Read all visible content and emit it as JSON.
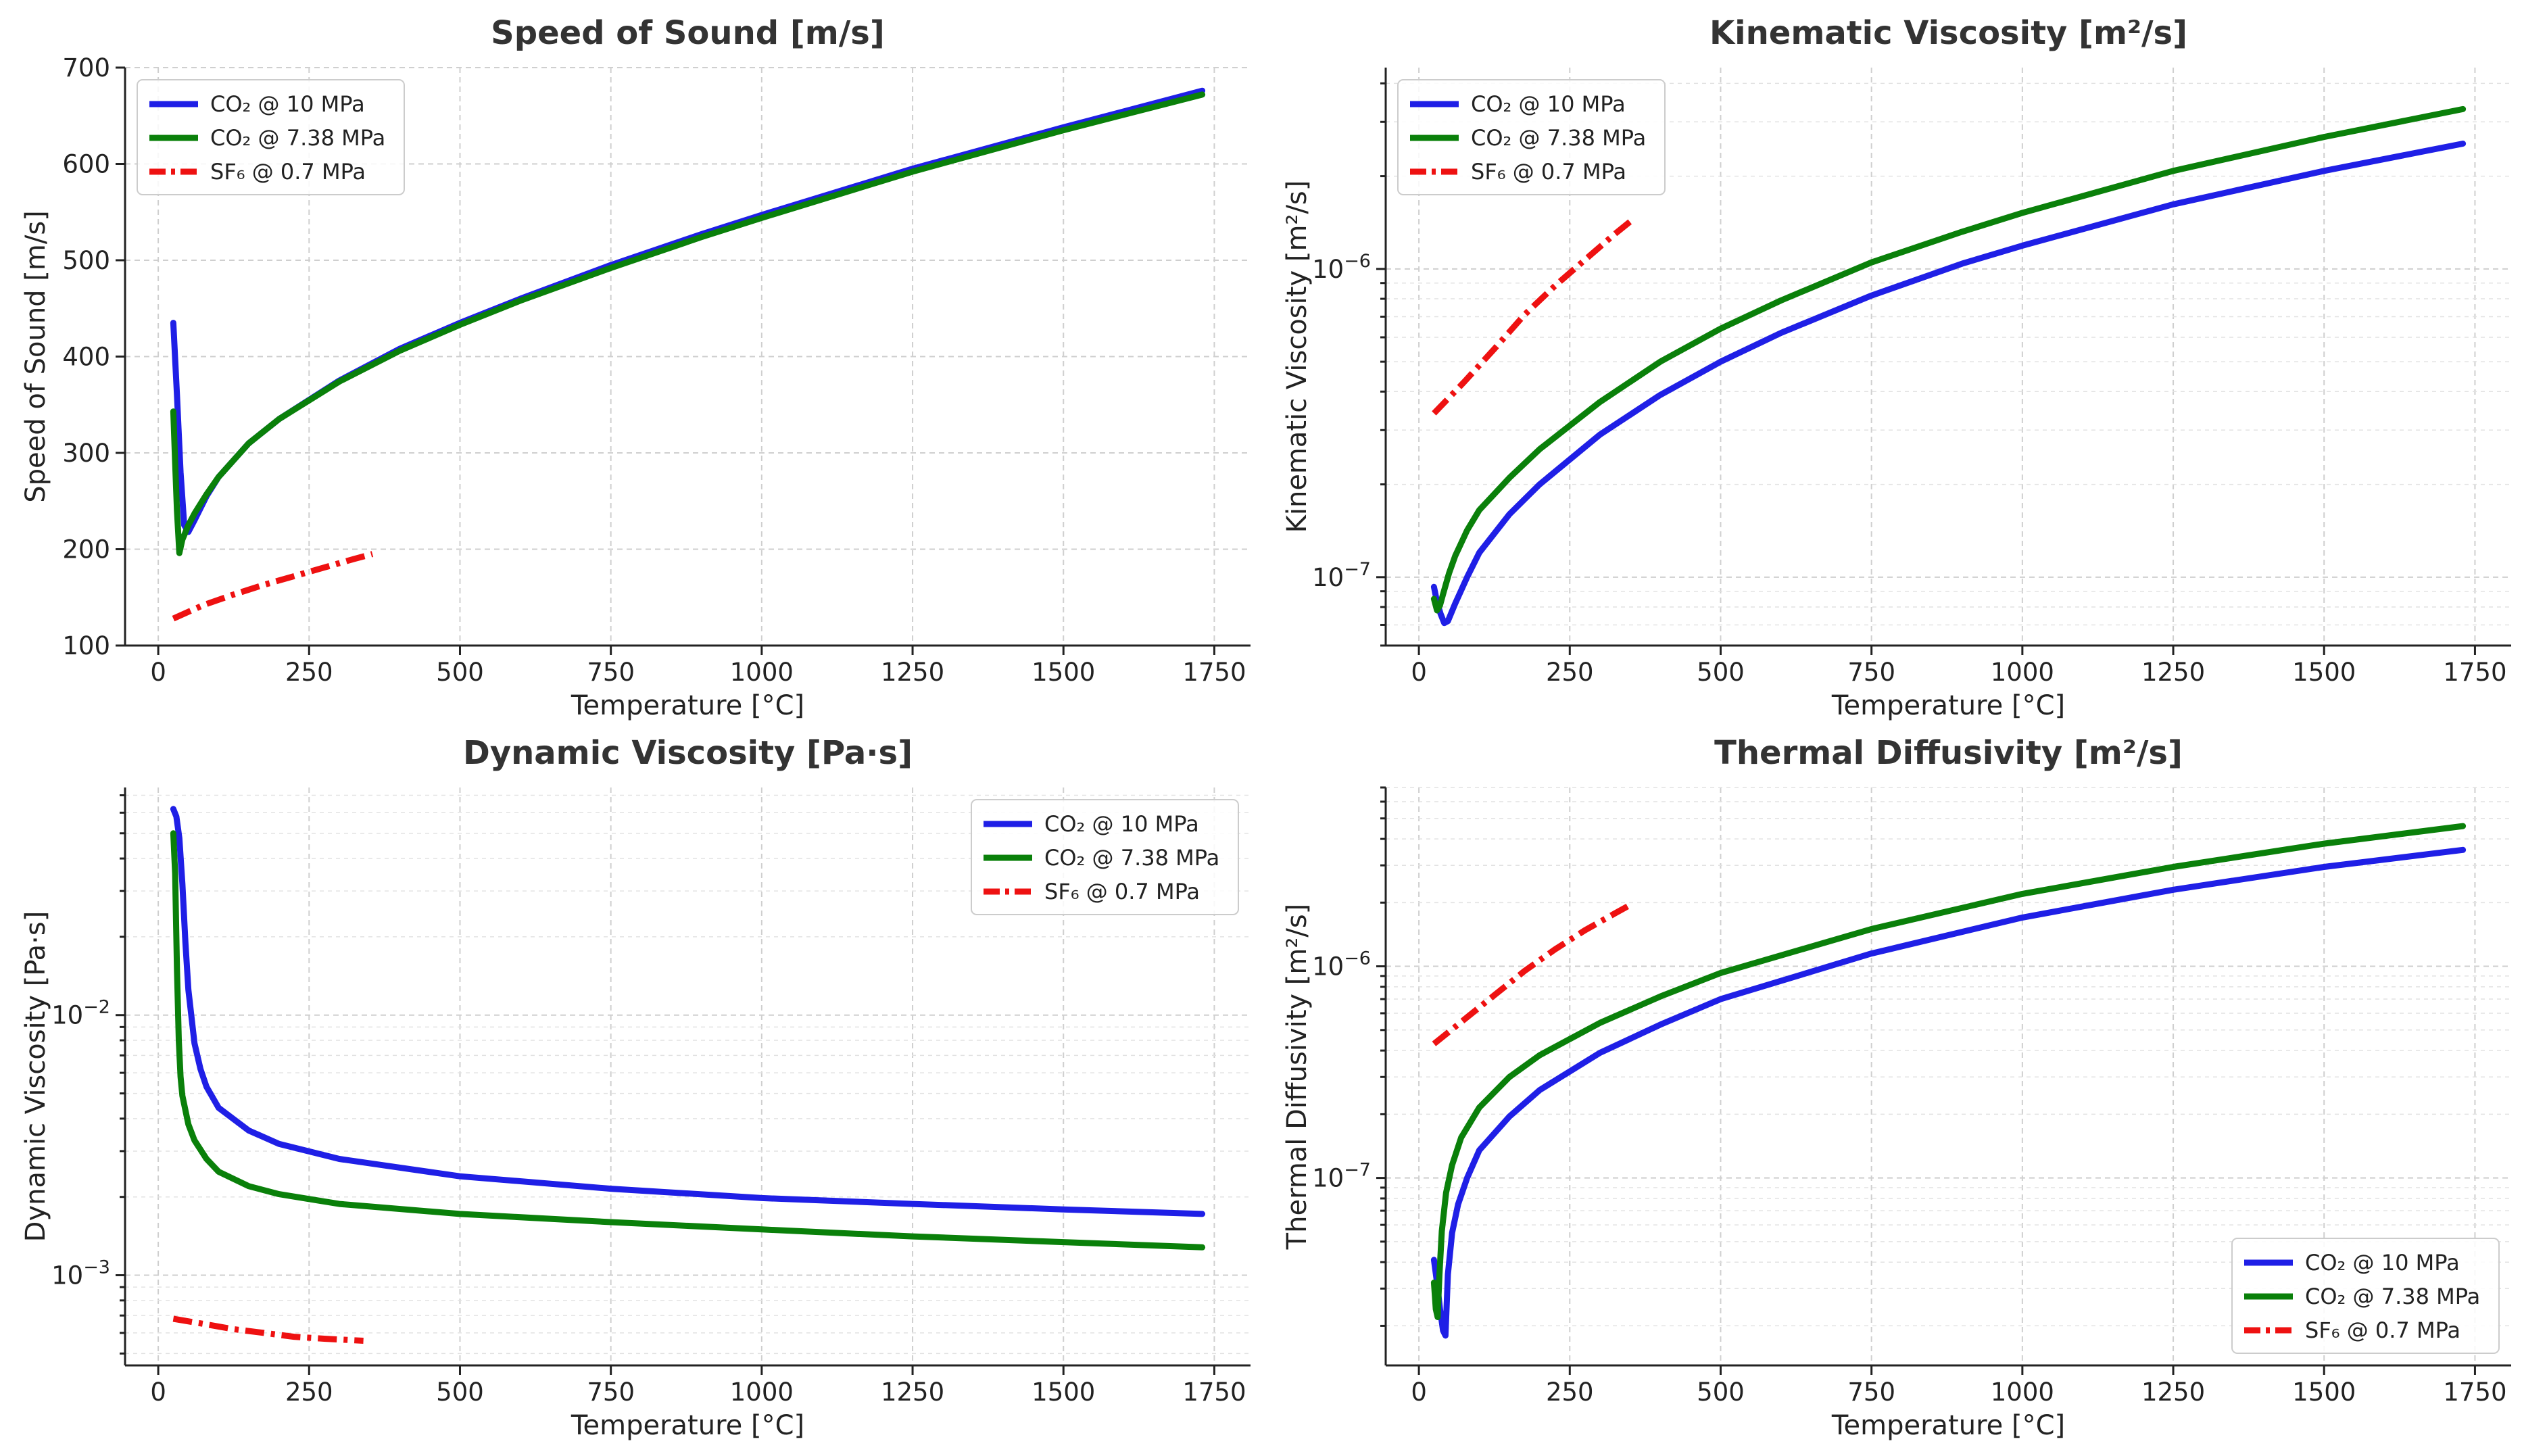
{
  "chart_data": [
    {
      "type": "line",
      "title": "Speed of Sound [m/s]",
      "xlabel": "Temperature [°C]",
      "ylabel": "Speed of Sound [m/s]",
      "xlim": [
        -55,
        1810
      ],
      "ylim": [
        100,
        700
      ],
      "yscale": "linear",
      "xticks": [
        0,
        250,
        500,
        750,
        1000,
        1250,
        1500,
        1750
      ],
      "xtick_labels": [
        "0",
        "250",
        "500",
        "750",
        "1000",
        "1250",
        "1500",
        "1750"
      ],
      "yticks": [
        100,
        200,
        300,
        400,
        500,
        600,
        700
      ],
      "ytick_labels": [
        "100",
        "200",
        "300",
        "400",
        "500",
        "600",
        "700"
      ],
      "legend_position": "top-left",
      "grid": true,
      "series": [
        {
          "name": "CO₂ @ 10 MPa",
          "color": "#1f1fe6",
          "dash": "solid",
          "x": [
            25,
            31,
            37,
            43,
            50,
            60,
            80,
            100,
            150,
            200,
            300,
            400,
            500,
            600,
            750,
            900,
            1000,
            1250,
            1500,
            1730
          ],
          "y": [
            435,
            360,
            280,
            225,
            218,
            230,
            255,
            275,
            310,
            335,
            375,
            408,
            435,
            460,
            495,
            527,
            547,
            595,
            638,
            676
          ]
        },
        {
          "name": "CO₂ @ 7.38 MPa",
          "color": "#0a800a",
          "dash": "solid",
          "x": [
            25,
            28,
            31,
            35,
            40,
            50,
            60,
            80,
            100,
            150,
            200,
            300,
            400,
            500,
            600,
            750,
            900,
            1000,
            1250,
            1500,
            1730
          ],
          "y": [
            343,
            290,
            240,
            196,
            210,
            225,
            237,
            257,
            275,
            310,
            335,
            374,
            406,
            433,
            458,
            492,
            524,
            544,
            592,
            635,
            672
          ]
        },
        {
          "name": "SF₆ @ 0.7 MPa",
          "color": "#ee1111",
          "dash": "dashdot",
          "x": [
            25,
            75,
            125,
            175,
            225,
            275,
            325,
            355
          ],
          "y": [
            128,
            142,
            153,
            163,
            172,
            181,
            190,
            195
          ]
        }
      ]
    },
    {
      "type": "line",
      "title": "Kinematic Viscosity [m²/s]",
      "xlabel": "Temperature [°C]",
      "ylabel": "Kinematic Viscosity [m²/s]",
      "xlim": [
        -55,
        1810
      ],
      "ylim": [
        6e-08,
        4.5e-06
      ],
      "yscale": "log",
      "xticks": [
        0,
        250,
        500,
        750,
        1000,
        1250,
        1500,
        1750
      ],
      "xtick_labels": [
        "0",
        "250",
        "500",
        "750",
        "1000",
        "1250",
        "1500",
        "1750"
      ],
      "ytick_major": [
        {
          "value": 1e-07,
          "base": "10",
          "exp": "−7"
        },
        {
          "value": 1e-06,
          "base": "10",
          "exp": "−6"
        }
      ],
      "legend_position": "top-left",
      "grid": true,
      "series": [
        {
          "name": "CO₂ @ 10 MPa",
          "color": "#1f1fe6",
          "dash": "solid",
          "x": [
            25,
            30,
            36,
            42,
            48,
            60,
            80,
            100,
            150,
            200,
            300,
            400,
            500,
            600,
            750,
            900,
            1000,
            1250,
            1500,
            1730
          ],
          "y": [
            9.3e-08,
            8.3e-08,
            7.6e-08,
            7.1e-08,
            7.2e-08,
            8.2e-08,
            1e-07,
            1.2e-07,
            1.6e-07,
            2e-07,
            2.9e-07,
            3.9e-07,
            5e-07,
            6.2e-07,
            8.2e-07,
            1.04e-06,
            1.19e-06,
            1.62e-06,
            2.08e-06,
            2.55e-06
          ]
        },
        {
          "name": "CO₂ @ 7.38 MPa",
          "color": "#0a800a",
          "dash": "solid",
          "x": [
            25,
            30,
            35,
            40,
            50,
            60,
            80,
            100,
            150,
            200,
            300,
            400,
            500,
            600,
            750,
            900,
            1000,
            1250,
            1500,
            1730
          ],
          "y": [
            8.5e-08,
            7.8e-08,
            8.1e-08,
            8.8e-08,
            1.03e-07,
            1.17e-07,
            1.42e-07,
            1.65e-07,
            2.1e-07,
            2.6e-07,
            3.7e-07,
            5e-07,
            6.4e-07,
            7.9e-07,
            1.05e-06,
            1.32e-06,
            1.52e-06,
            2.08e-06,
            2.68e-06,
            3.3e-06
          ]
        },
        {
          "name": "SF₆ @ 0.7 MPa",
          "color": "#ee1111",
          "dash": "dashdot",
          "x": [
            25,
            75,
            125,
            175,
            225,
            275,
            325,
            355
          ],
          "y": [
            3.4e-07,
            4.3e-07,
            5.5e-07,
            7.1e-07,
            8.8e-07,
            1.07e-06,
            1.3e-06,
            1.45e-06
          ]
        }
      ]
    },
    {
      "type": "line",
      "title": "Dynamic Viscosity [Pa·s]",
      "xlabel": "Temperature [°C]",
      "ylabel": "Dynamic Viscosity [Pa·s]",
      "xlim": [
        -55,
        1810
      ],
      "ylim": [
        0.00045,
        0.075
      ],
      "yscale": "log",
      "xticks": [
        0,
        250,
        500,
        750,
        1000,
        1250,
        1500,
        1750
      ],
      "xtick_labels": [
        "0",
        "250",
        "500",
        "750",
        "1000",
        "1250",
        "1500",
        "1750"
      ],
      "ytick_major": [
        {
          "value": 0.001,
          "base": "10",
          "exp": "−3"
        },
        {
          "value": 0.01,
          "base": "10",
          "exp": "−2"
        }
      ],
      "legend_position": "top-right",
      "grid": true,
      "series": [
        {
          "name": "CO₂ @ 10 MPa",
          "color": "#1f1fe6",
          "dash": "solid",
          "x": [
            25,
            30,
            35,
            40,
            45,
            50,
            60,
            70,
            80,
            100,
            150,
            200,
            300,
            500,
            750,
            1000,
            1250,
            1500,
            1730
          ],
          "y": [
            0.062,
            0.058,
            0.048,
            0.032,
            0.019,
            0.0125,
            0.0078,
            0.0062,
            0.0053,
            0.0044,
            0.0036,
            0.0032,
            0.0028,
            0.0024,
            0.00215,
            0.00198,
            0.00188,
            0.00179,
            0.00172
          ]
        },
        {
          "name": "CO₂ @ 7.38 MPa",
          "color": "#0a800a",
          "dash": "solid",
          "x": [
            25,
            28,
            31,
            34,
            37,
            40,
            50,
            60,
            80,
            100,
            150,
            200,
            300,
            500,
            750,
            1000,
            1250,
            1500,
            1730
          ],
          "y": [
            0.05,
            0.035,
            0.015,
            0.008,
            0.0058,
            0.0049,
            0.0038,
            0.0033,
            0.0028,
            0.0025,
            0.0022,
            0.00205,
            0.00188,
            0.00172,
            0.0016,
            0.0015,
            0.00141,
            0.00134,
            0.00128
          ]
        },
        {
          "name": "SF₆ @ 0.7 MPa",
          "color": "#ee1111",
          "dash": "dashdot",
          "x": [
            25,
            75,
            125,
            175,
            225,
            275,
            340
          ],
          "y": [
            0.00068,
            0.00065,
            0.00062,
            0.0006,
            0.00058,
            0.00057,
            0.00056
          ]
        }
      ]
    },
    {
      "type": "line",
      "title": "Thermal Diffusivity [m²/s]",
      "xlabel": "Temperature [°C]",
      "ylabel": "Thermal Diffusivity [m²/s]",
      "xlim": [
        -55,
        1810
      ],
      "ylim": [
        1.3e-08,
        7e-06
      ],
      "yscale": "log",
      "xticks": [
        0,
        250,
        500,
        750,
        1000,
        1250,
        1500,
        1750
      ],
      "xtick_labels": [
        "0",
        "250",
        "500",
        "750",
        "1000",
        "1250",
        "1500",
        "1750"
      ],
      "ytick_major": [
        {
          "value": 1e-07,
          "base": "10",
          "exp": "−7"
        },
        {
          "value": 1e-06,
          "base": "10",
          "exp": "−6"
        }
      ],
      "legend_position": "bottom-right",
      "grid": true,
      "series": [
        {
          "name": "CO₂ @ 10 MPa",
          "color": "#1f1fe6",
          "dash": "solid",
          "x": [
            25,
            30,
            35,
            40,
            44,
            48,
            55,
            65,
            80,
            100,
            150,
            200,
            300,
            400,
            500,
            750,
            1000,
            1250,
            1500,
            1730
          ],
          "y": [
            4.1e-08,
            3.2e-08,
            2.4e-08,
            1.9e-08,
            1.8e-08,
            3.5e-08,
            5.5e-08,
            7.5e-08,
            1e-07,
            1.35e-07,
            1.95e-07,
            2.6e-07,
            3.9e-07,
            5.3e-07,
            7e-07,
            1.15e-06,
            1.7e-06,
            2.3e-06,
            2.95e-06,
            3.55e-06
          ]
        },
        {
          "name": "CO₂ @ 7.38 MPa",
          "color": "#0a800a",
          "dash": "solid",
          "x": [
            25,
            28,
            31,
            34,
            38,
            45,
            55,
            70,
            100,
            150,
            200,
            300,
            400,
            500,
            750,
            1000,
            1250,
            1500,
            1730
          ],
          "y": [
            3.2e-08,
            2.4e-08,
            2.2e-08,
            3.5e-08,
            5.6e-08,
            8.5e-08,
            1.15e-07,
            1.55e-07,
            2.15e-07,
            3e-07,
            3.8e-07,
            5.4e-07,
            7.2e-07,
            9.3e-07,
            1.5e-06,
            2.2e-06,
            2.95e-06,
            3.8e-06,
            4.6e-06
          ]
        },
        {
          "name": "SF₆ @ 0.7 MPa",
          "color": "#ee1111",
          "dash": "dashdot",
          "x": [
            25,
            75,
            125,
            175,
            225,
            275,
            325,
            350
          ],
          "y": [
            4.3e-07,
            5.6e-07,
            7.3e-07,
            9.5e-07,
            1.2e-06,
            1.48e-06,
            1.78e-06,
            1.95e-06
          ]
        }
      ]
    }
  ]
}
